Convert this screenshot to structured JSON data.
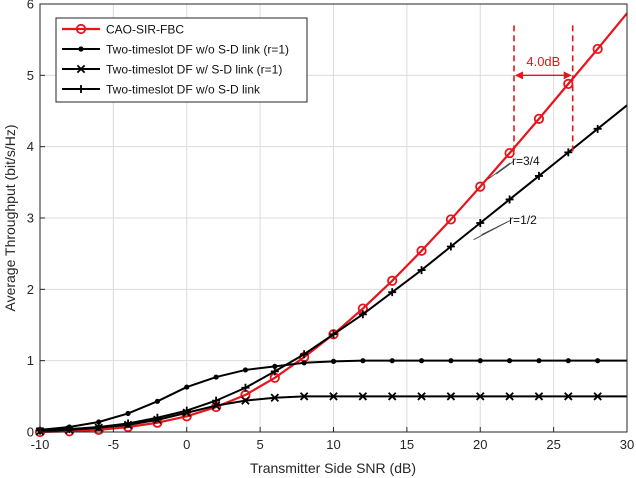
{
  "chart_data": {
    "type": "line",
    "xlabel": "Transmitter Side SNR (dB)",
    "ylabel": "Average Throughput (bit/s/Hz)",
    "xlim": [
      -10,
      30
    ],
    "ylim": [
      0,
      6
    ],
    "xticks": [
      -10,
      -5,
      0,
      5,
      10,
      15,
      20,
      25,
      30
    ],
    "yticks": [
      0,
      1,
      2,
      3,
      4,
      5,
      6
    ],
    "grid": true,
    "legend_position": "top-left",
    "series": [
      {
        "name": "CAO-SIR-FBC",
        "color": "#e8141b",
        "marker": "circle",
        "x": [
          -10,
          -8,
          -6,
          -4,
          -2,
          0,
          2,
          4,
          6,
          8,
          10,
          12,
          14,
          16,
          18,
          20,
          22,
          24,
          26,
          28,
          30
        ],
        "y": [
          0.0,
          0.01,
          0.03,
          0.07,
          0.13,
          0.22,
          0.35,
          0.52,
          0.76,
          1.05,
          1.37,
          1.73,
          2.12,
          2.54,
          2.98,
          3.44,
          3.91,
          4.39,
          4.88,
          5.37,
          5.87
        ],
        "marker_x": [
          -10,
          -8,
          -6,
          -4,
          -2,
          0,
          2,
          4,
          6,
          8,
          10,
          12,
          14,
          16,
          18,
          20,
          22,
          24,
          26,
          28
        ]
      },
      {
        "name": "Two-timeslot DF w/o S-D link (r=1)",
        "color": "#000000",
        "marker": "dot",
        "x": [
          -10,
          -8,
          -6,
          -4,
          -2,
          0,
          2,
          4,
          6,
          8,
          10,
          12,
          14,
          16,
          18,
          20,
          22,
          24,
          26,
          28,
          30
        ],
        "y": [
          0.03,
          0.07,
          0.14,
          0.26,
          0.43,
          0.63,
          0.77,
          0.87,
          0.92,
          0.97,
          0.99,
          1.0,
          1.0,
          1.0,
          1.0,
          1.0,
          1.0,
          1.0,
          1.0,
          1.0,
          1.0
        ],
        "marker_x": [
          -10,
          -8,
          -6,
          -4,
          -2,
          0,
          2,
          4,
          6,
          8,
          10,
          12,
          14,
          16,
          18,
          20,
          22,
          24,
          26,
          28
        ]
      },
      {
        "name": "Two-timeslot DF w/ S-D link (r=1)",
        "color": "#000000",
        "marker": "x",
        "x": [
          -10,
          -8,
          -6,
          -4,
          -2,
          0,
          2,
          4,
          6,
          8,
          10,
          12,
          14,
          16,
          18,
          20,
          22,
          24,
          26,
          28,
          30
        ],
        "y": [
          0.01,
          0.03,
          0.06,
          0.1,
          0.17,
          0.27,
          0.37,
          0.44,
          0.48,
          0.5,
          0.5,
          0.5,
          0.5,
          0.5,
          0.5,
          0.5,
          0.5,
          0.5,
          0.5,
          0.5,
          0.5
        ],
        "marker_x": [
          -10,
          -8,
          -6,
          -4,
          -2,
          0,
          2,
          4,
          6,
          8,
          10,
          12,
          14,
          16,
          18,
          20,
          22,
          24,
          26,
          28
        ]
      },
      {
        "name": "Two-timeslot DF w/o S-D link",
        "color": "#000000",
        "marker": "plus",
        "x": [
          -10,
          -8,
          -6,
          -4,
          -2,
          0,
          2,
          4,
          6,
          8,
          10,
          12,
          14,
          16,
          18,
          20,
          22,
          24,
          26,
          28,
          30
        ],
        "y": [
          0.02,
          0.04,
          0.07,
          0.12,
          0.2,
          0.3,
          0.44,
          0.62,
          0.85,
          1.09,
          1.37,
          1.65,
          1.96,
          2.27,
          2.6,
          2.93,
          3.26,
          3.59,
          3.92,
          4.25,
          4.58
        ],
        "marker_x": [
          -10,
          -8,
          -6,
          -4,
          -2,
          0,
          2,
          4,
          6,
          8,
          10,
          12,
          14,
          16,
          18,
          20,
          22,
          24,
          26,
          28
        ]
      }
    ],
    "annotations": [
      {
        "text": "4.0dB",
        "type": "gap",
        "x_from": 22.3,
        "x_to": 26.3,
        "y_text": 5.2,
        "color": "#e8141b"
      },
      {
        "text": "r=3/4",
        "type": "slope-label",
        "anchor": [
          21.5,
          3.7
        ],
        "label_at": [
          22.3,
          3.8
        ]
      },
      {
        "text": "r=1/2",
        "type": "slope-label",
        "anchor": [
          20.5,
          2.85
        ],
        "label_at": [
          22.1,
          2.97
        ]
      }
    ]
  }
}
